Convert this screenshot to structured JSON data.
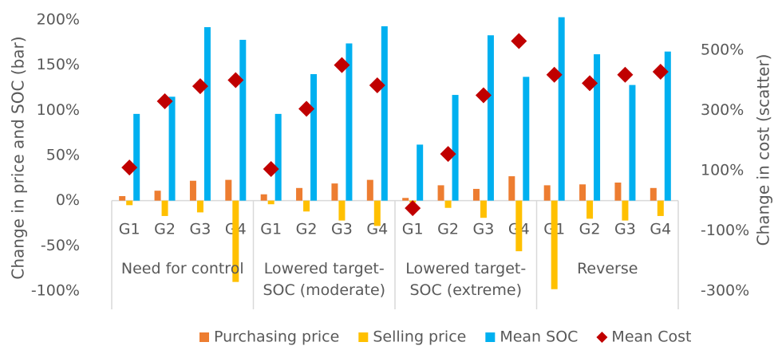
{
  "chart_data": {
    "type": "bar-scatter",
    "y_label": "Change in price and SOC (bar)",
    "y2_label": "Change in cost (scatter)",
    "categories": [
      "G1",
      "G2",
      "G3",
      "G4",
      "G1",
      "G2",
      "G3",
      "G4",
      "G1",
      "G2",
      "G3",
      "G4",
      "G1",
      "G2",
      "G3",
      "G4"
    ],
    "groups": [
      "Need for control",
      "Lowered target-\nSOC (moderate)",
      "Lowered target-\nSOC (extreme)",
      "Reverse"
    ],
    "series": [
      {
        "name": "Purchasing price",
        "color": "#ed7d31",
        "values": [
          5,
          11,
          22,
          23,
          7,
          14,
          19,
          23,
          3,
          17,
          13,
          27,
          17,
          18,
          20,
          14
        ]
      },
      {
        "name": "Selling price",
        "color": "#ffc000",
        "values": [
          -5,
          -17,
          -13,
          -90,
          -4,
          -12,
          -22,
          -28,
          -2,
          -8,
          -19,
          -56,
          -98,
          -20,
          -22,
          -17
        ]
      },
      {
        "name": "Mean SOC",
        "color": "#00b0f0",
        "values": [
          96,
          115,
          192,
          178,
          96,
          140,
          174,
          193,
          62,
          117,
          183,
          137,
          203,
          162,
          128,
          165
        ]
      },
      {
        "name": "Mean Cost",
        "color": "#c00000",
        "axis": "y2",
        "marker": "diamond",
        "values": [
          110,
          330,
          380,
          400,
          105,
          305,
          450,
          383,
          -25,
          155,
          350,
          530,
          418,
          390,
          418,
          428
        ]
      }
    ],
    "ylim": [
      -100,
      200
    ],
    "yticks": [
      {
        "value": -100,
        "label": "-100%"
      },
      {
        "value": -50,
        "label": "-50%"
      },
      {
        "value": 0,
        "label": "0%"
      },
      {
        "value": 50,
        "label": "50%"
      },
      {
        "value": 100,
        "label": "100%"
      },
      {
        "value": 150,
        "label": "150%"
      },
      {
        "value": 200,
        "label": "200%"
      }
    ],
    "y2lim": [
      -300,
      600
    ],
    "y2ticks": [
      {
        "value": -300,
        "label": "-300%"
      },
      {
        "value": -100,
        "label": "-100%"
      },
      {
        "value": 100,
        "label": "100%"
      },
      {
        "value": 300,
        "label": "300%"
      },
      {
        "value": 500,
        "label": "500%"
      }
    ]
  }
}
